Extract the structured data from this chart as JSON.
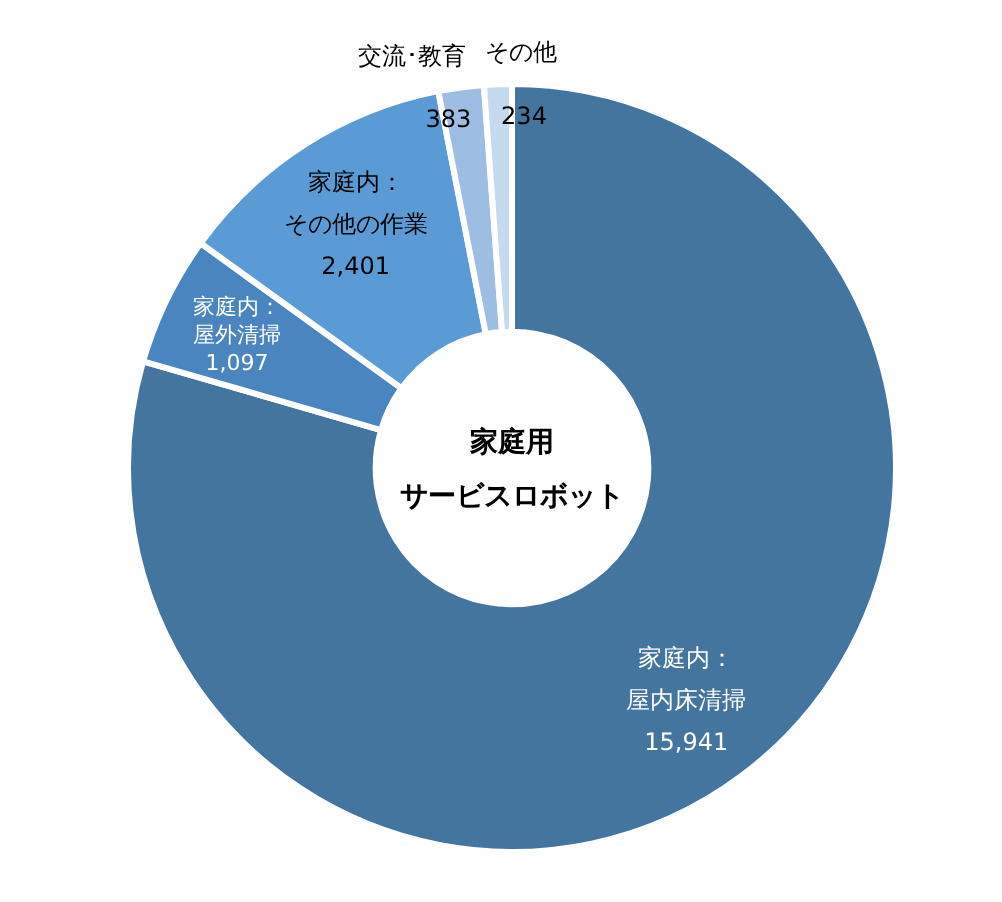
{
  "chart_data": {
    "type": "donut",
    "title": "家庭用サービスロボット",
    "categories": [
      "家庭内：屋内床清掃",
      "家庭内：屋外清掃",
      "家庭内：その他の作業",
      "交流･教育",
      "その他"
    ],
    "values": [
      15941,
      1097,
      2401,
      383,
      234
    ],
    "value_labels": [
      "15,941",
      "1,097",
      "2,401",
      "383",
      "234"
    ],
    "colors": [
      "#44759f",
      "#4a85bf",
      "#5b9bd5",
      "#9dbde3",
      "#c5d9ef"
    ],
    "legend": false
  }
}
